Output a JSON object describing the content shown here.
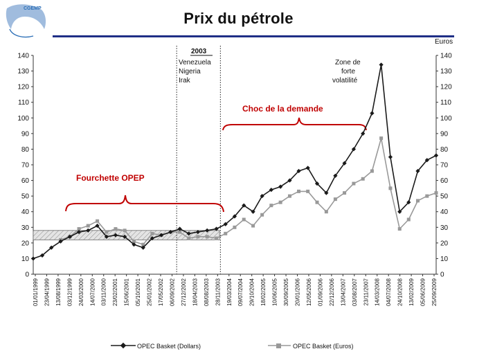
{
  "logo": {
    "text": "CGEMP UNIVERSITE PARIS DAUPHINE",
    "colors": {
      "fill": "#8fb0d8",
      "text": "#2c6fb7"
    }
  },
  "chart_data": {
    "type": "line",
    "title": "Prix du pétrole",
    "y_right_unit": "Euros",
    "ylim": [
      0,
      140
    ],
    "yticks": [
      0,
      10,
      20,
      30,
      40,
      50,
      60,
      70,
      80,
      90,
      100,
      110,
      120,
      130,
      140
    ],
    "xlim": [
      "1999-01-01",
      "2009-12-31"
    ],
    "xtick_labels": [
      "01/01/1999",
      "23/04/1999",
      "13/08/1999",
      "03/12/1999",
      "24/03/2000",
      "14/07/2000",
      "03/11/2000",
      "23/02/2001",
      "15/06/2001",
      "05/10/2001",
      "25/01/2002",
      "17/05/2002",
      "06/09/2002",
      "27/12/2002",
      "18/04/2003",
      "08/08/2003",
      "28/11/2003",
      "19/03/2004",
      "09/07/2004",
      "29/10/2004",
      "18/02/2005",
      "10/06/2005",
      "30/09/2005",
      "20/01/2006",
      "12/05/2006",
      "01/09/2006",
      "22/12/2006",
      "13/04/2007",
      "03/08/2007",
      "23/11/2007",
      "14/03/2008",
      "04/07/2008",
      "24/10/2008",
      "13/02/2009",
      "05/06/2009",
      "25/09/2009"
    ],
    "series": [
      {
        "name": "OPEC Basket (Dollars)",
        "color": "#1a1a1a",
        "marker": "diamond",
        "x": [
          "1999-01-01",
          "1999-04-01",
          "1999-07-01",
          "1999-10-01",
          "2000-01-01",
          "2000-04-01",
          "2000-07-01",
          "2000-10-01",
          "2001-01-01",
          "2001-04-01",
          "2001-07-01",
          "2001-10-01",
          "2002-01-01",
          "2002-04-01",
          "2002-07-01",
          "2002-10-01",
          "2003-01-01",
          "2003-04-01",
          "2003-07-01",
          "2003-10-01",
          "2004-01-01",
          "2004-04-01",
          "2004-07-01",
          "2004-10-01",
          "2005-01-01",
          "2005-04-01",
          "2005-07-01",
          "2005-10-01",
          "2006-01-01",
          "2006-04-01",
          "2006-07-01",
          "2006-10-01",
          "2007-01-01",
          "2007-04-01",
          "2007-07-01",
          "2007-10-01",
          "2008-01-01",
          "2008-04-01",
          "2008-07-01",
          "2008-10-01",
          "2009-01-01",
          "2009-04-01",
          "2009-07-01",
          "2009-10-01",
          "2009-12-31"
        ],
        "y": [
          10,
          12,
          17,
          21,
          24,
          27,
          28,
          31,
          24,
          25,
          24,
          19,
          17,
          23,
          25,
          27,
          29,
          26,
          27,
          28,
          29,
          32,
          37,
          44,
          40,
          50,
          54,
          56,
          60,
          66,
          68,
          58,
          52,
          63,
          71,
          80,
          90,
          103,
          134,
          75,
          40,
          46,
          66,
          73,
          76
        ]
      },
      {
        "name": "OPEC Basket (Euros)",
        "color": "#999999",
        "marker": "square",
        "x": [
          "1999-01-01",
          "1999-04-01",
          "1999-07-01",
          "1999-10-01",
          "2000-01-01",
          "2000-04-01",
          "2000-07-01",
          "2000-10-01",
          "2001-01-01",
          "2001-04-01",
          "2001-07-01",
          "2001-10-01",
          "2002-01-01",
          "2002-04-01",
          "2002-07-01",
          "2002-10-01",
          "2003-01-01",
          "2003-04-01",
          "2003-07-01",
          "2003-10-01",
          "2004-01-01",
          "2004-04-01",
          "2004-07-01",
          "2004-10-01",
          "2005-01-01",
          "2005-04-01",
          "2005-07-01",
          "2005-10-01",
          "2006-01-01",
          "2006-04-01",
          "2006-07-01",
          "2006-10-01",
          "2007-01-01",
          "2007-04-01",
          "2007-07-01",
          "2007-10-01",
          "2008-01-01",
          "2008-04-01",
          "2008-07-01",
          "2008-10-01",
          "2009-01-01",
          "2009-04-01",
          "2009-07-01",
          "2009-10-01",
          "2009-12-31"
        ],
        "y": [
          null,
          null,
          null,
          22,
          24,
          29,
          31,
          34,
          27,
          29,
          28,
          21,
          19,
          26,
          25,
          27,
          27,
          23,
          24,
          24,
          23,
          26,
          30,
          35,
          31,
          38,
          44,
          46,
          50,
          53,
          53,
          46,
          40,
          48,
          52,
          58,
          61,
          66,
          87,
          55,
          29,
          35,
          47,
          50,
          52
        ]
      }
    ],
    "bands": [
      {
        "label": "Fourchette OPEP",
        "from": 22,
        "to": 28,
        "x_from": "1999-01-01",
        "x_to": "2004-02-01",
        "pattern": "hatched"
      }
    ],
    "annotations": [
      {
        "text": "2003",
        "underline": true
      },
      {
        "text": "Venezuela"
      },
      {
        "text": "Nigeria"
      },
      {
        "text": "Irak"
      },
      {
        "text": "Zone de"
      },
      {
        "text": "forte"
      },
      {
        "text": "volatilité"
      },
      {
        "text": "Fourchette OPEP",
        "color": "#c00000"
      },
      {
        "text": "Choc de la demande",
        "color": "#c00000"
      }
    ],
    "vertical_markers": [
      {
        "x": "2002-12-01",
        "style": "dotted"
      },
      {
        "x": "2004-02-10",
        "style": "dotted"
      }
    ],
    "legend": {
      "position": "bottom"
    },
    "grid": false
  }
}
